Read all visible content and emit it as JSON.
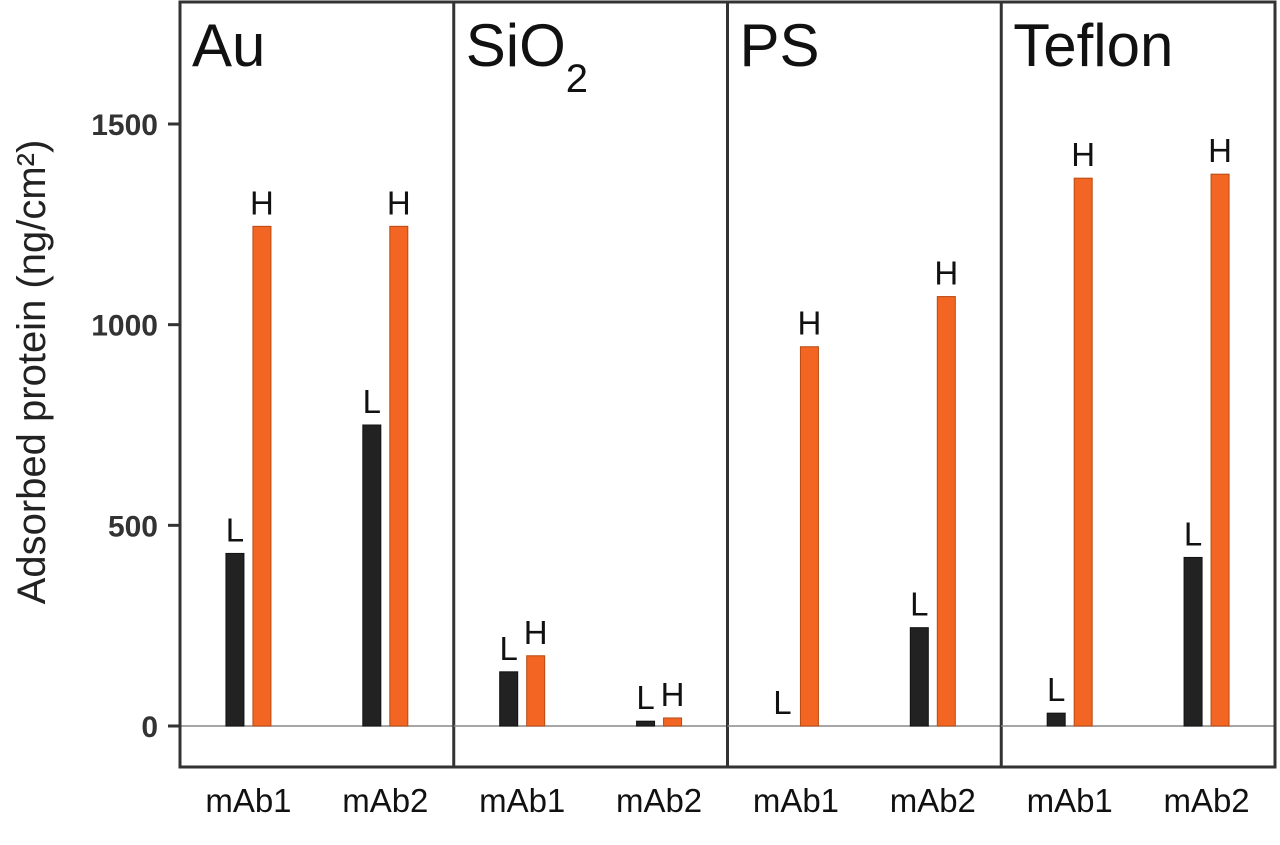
{
  "chart_data": {
    "type": "bar",
    "ylabel": "Adsorbed protein (ng/cm²)",
    "ylim": [
      -100,
      1750
    ],
    "yticks": [
      0,
      500,
      1000,
      1500
    ],
    "grid": false,
    "series_colors": {
      "L": "#222222",
      "H": "#f26522"
    },
    "panels": [
      {
        "title": "Au",
        "categories": [
          "mAb1",
          "mAb2"
        ],
        "series": [
          {
            "name": "L",
            "values": [
              430,
              750
            ]
          },
          {
            "name": "H",
            "values": [
              1245,
              1245
            ]
          }
        ]
      },
      {
        "title": "SiO",
        "title_subscript": "2",
        "categories": [
          "mAb1",
          "mAb2"
        ],
        "series": [
          {
            "name": "L",
            "values": [
              135,
              12
            ]
          },
          {
            "name": "H",
            "values": [
              175,
              20
            ]
          }
        ]
      },
      {
        "title": "PS",
        "categories": [
          "mAb1",
          "mAb2"
        ],
        "series": [
          {
            "name": "L",
            "values": [
              0,
              245
            ]
          },
          {
            "name": "H",
            "values": [
              945,
              1070
            ]
          }
        ]
      },
      {
        "title": "Teflon",
        "categories": [
          "mAb1",
          "mAb2"
        ],
        "series": [
          {
            "name": "L",
            "values": [
              32,
              420
            ]
          },
          {
            "name": "H",
            "values": [
              1365,
              1375
            ]
          }
        ]
      }
    ]
  }
}
